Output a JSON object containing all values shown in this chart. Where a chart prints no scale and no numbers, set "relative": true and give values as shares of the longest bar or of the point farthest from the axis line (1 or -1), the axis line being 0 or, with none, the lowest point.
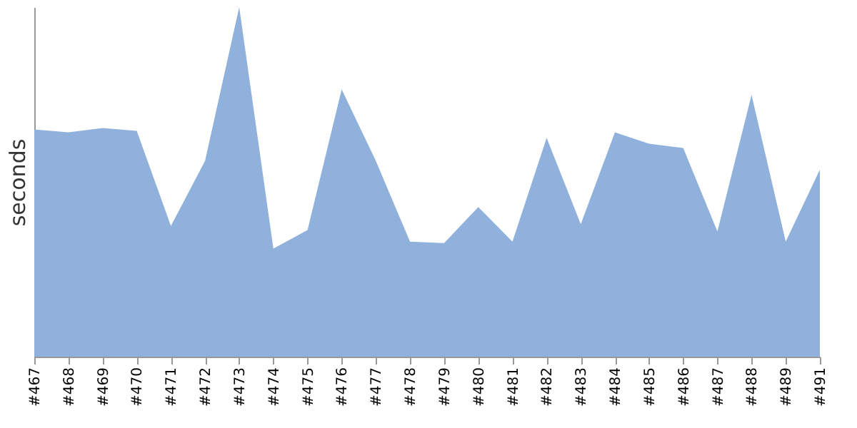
{
  "chart_data": {
    "type": "area",
    "relative": true,
    "ylabel": "seconds",
    "categories": [
      "#467",
      "#468",
      "#469",
      "#470",
      "#471",
      "#472",
      "#473",
      "#474",
      "#475",
      "#476",
      "#477",
      "#478",
      "#479",
      "#480",
      "#481",
      "#482",
      "#483",
      "#484",
      "#485",
      "#486",
      "#487",
      "#488",
      "#489",
      "#491"
    ],
    "series": [
      {
        "color": "#8fb1db",
        "values": [
          0.65,
          0.642,
          0.654,
          0.646,
          0.374,
          0.56,
          1,
          0.309,
          0.362,
          0.765,
          0.56,
          0.329,
          0.325,
          0.428,
          0.329,
          0.626,
          0.379,
          0.642,
          0.609,
          0.597,
          0.358,
          0.749,
          0.329,
          0.535
        ]
      }
    ],
    "grid": false
  }
}
